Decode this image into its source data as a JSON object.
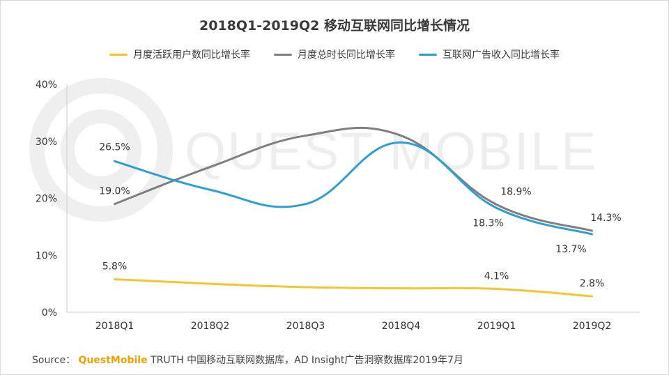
{
  "chart_data": {
    "type": "line",
    "title": "2018Q1-2019Q2 移动互联网同比增长情况",
    "categories": [
      "2018Q1",
      "2018Q2",
      "2018Q3",
      "2018Q4",
      "2019Q1",
      "2019Q2"
    ],
    "ylim": [
      0,
      40
    ],
    "yticks": [
      0,
      10,
      20,
      30,
      40
    ],
    "ytick_labels": [
      "0%",
      "10%",
      "20%",
      "30%",
      "40%"
    ],
    "grid": false,
    "legend_position": "top",
    "series": [
      {
        "name": "月度活跃用户数同比增长率",
        "color": "#f5c431",
        "values": [
          5.8,
          5.0,
          4.4,
          4.2,
          4.1,
          2.8
        ],
        "labels": [
          "5.8%",
          "",
          "",
          "",
          "4.1%",
          "2.8%"
        ]
      },
      {
        "name": "月度总时长同比增长率",
        "color": "#7f7f7f",
        "values": [
          19.0,
          25.5,
          31.0,
          31.0,
          18.9,
          14.3
        ],
        "labels": [
          "19.0%",
          "",
          "",
          "",
          "18.9%",
          "14.3%"
        ]
      },
      {
        "name": "互联网广告收入同比增长率",
        "color": "#2e9fd3",
        "values": [
          26.5,
          21.5,
          19.0,
          29.8,
          18.3,
          13.7
        ],
        "labels": [
          "26.5%",
          "",
          "",
          "",
          "18.3%",
          "13.7%"
        ]
      }
    ],
    "watermark": "QUEST MOBILE"
  },
  "source": {
    "prefix": "Source：",
    "brand": "QuestMobile",
    "text": " TRUTH 中国移动互联网数据库，AD Insight广告洞察数据库2019年7月"
  }
}
